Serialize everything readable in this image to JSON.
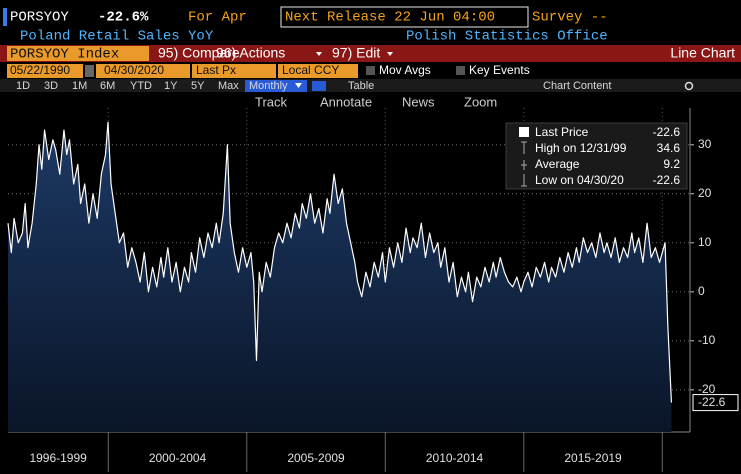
{
  "header": {
    "ticker": "PORSYOY",
    "change": "-22.6%",
    "period": "For Apr",
    "next_release": "Next Release 22 Jun 04:00",
    "survey": "Survey --",
    "description": "Poland Retail Sales YoY",
    "source": "Polish Statistics Office"
  },
  "toolbar": {
    "security": "PORSYOY Index",
    "menus": [
      "95) Compare",
      "96) Actions",
      "97) Edit"
    ],
    "chart_type": "Line Chart",
    "start_date": "05/22/1990",
    "end_date": "04/30/2020",
    "field": "Last Px",
    "currency": "Local CCY",
    "toggles": [
      "Mov Avgs",
      "Key Events"
    ],
    "ranges": [
      "1D",
      "3D",
      "1M",
      "6M",
      "YTD",
      "1Y",
      "5Y",
      "Max"
    ],
    "frequency": "Monthly",
    "table": "Table",
    "chart_content": "Chart Content",
    "tools": [
      "Track",
      "Annotate",
      "News",
      "Zoom"
    ]
  },
  "chart_data": {
    "type": "area",
    "x": [
      1996.38,
      1996.5,
      1996.6,
      1996.75,
      1996.9,
      1997.0,
      1997.1,
      1997.25,
      1997.4,
      1997.5,
      1997.6,
      1997.7,
      1997.85,
      1998.0,
      1998.1,
      1998.25,
      1998.4,
      1998.5,
      1998.6,
      1998.75,
      1998.9,
      1999.0,
      1999.15,
      1999.3,
      1999.45,
      1999.6,
      1999.75,
      1999.9,
      1999.99,
      2000.1,
      2000.25,
      2000.4,
      2000.55,
      2000.7,
      2000.85,
      2001.0,
      2001.15,
      2001.3,
      2001.45,
      2001.6,
      2001.75,
      2001.9,
      2002.0,
      2002.15,
      2002.3,
      2002.45,
      2002.6,
      2002.75,
      2002.9,
      2003.0,
      2003.15,
      2003.3,
      2003.45,
      2003.6,
      2003.75,
      2003.9,
      2004.0,
      2004.15,
      2004.3,
      2004.4,
      2004.55,
      2004.7,
      2004.85,
      2005.0,
      2005.15,
      2005.25,
      2005.35,
      2005.45,
      2005.55,
      2005.7,
      2005.85,
      2006.0,
      2006.15,
      2006.3,
      2006.45,
      2006.6,
      2006.75,
      2006.9,
      2007.0,
      2007.15,
      2007.3,
      2007.45,
      2007.6,
      2007.75,
      2007.9,
      2008.0,
      2008.15,
      2008.3,
      2008.45,
      2008.6,
      2008.75,
      2008.9,
      2009.0,
      2009.15,
      2009.3,
      2009.45,
      2009.6,
      2009.75,
      2009.9,
      2010.0,
      2010.15,
      2010.3,
      2010.45,
      2010.6,
      2010.75,
      2010.9,
      2011.0,
      2011.15,
      2011.3,
      2011.45,
      2011.6,
      2011.75,
      2011.9,
      2012.0,
      2012.15,
      2012.3,
      2012.45,
      2012.6,
      2012.75,
      2012.9,
      2013.0,
      2013.15,
      2013.3,
      2013.45,
      2013.6,
      2013.75,
      2013.9,
      2014.0,
      2014.15,
      2014.3,
      2014.45,
      2014.6,
      2014.75,
      2014.9,
      2015.0,
      2015.15,
      2015.3,
      2015.45,
      2015.6,
      2015.75,
      2015.9,
      2016.0,
      2016.15,
      2016.3,
      2016.45,
      2016.6,
      2016.75,
      2016.9,
      2017.0,
      2017.15,
      2017.3,
      2017.45,
      2017.6,
      2017.75,
      2017.9,
      2018.0,
      2018.15,
      2018.3,
      2018.45,
      2018.6,
      2018.75,
      2018.9,
      2019.0,
      2019.15,
      2019.3,
      2019.45,
      2019.6,
      2019.75,
      2019.9,
      2020.0,
      2020.1,
      2020.2,
      2020.33
    ],
    "series": [
      {
        "name": "Last Price",
        "color": "#ffffff",
        "fill": "#13284a",
        "values": [
          14,
          8,
          15,
          10,
          12,
          18,
          9,
          14,
          22,
          30,
          25,
          33,
          27,
          31,
          29,
          24,
          33,
          28,
          31,
          22,
          26,
          18,
          22,
          14,
          20,
          15,
          24,
          28,
          34.6,
          22,
          16,
          10,
          12,
          5,
          9,
          6,
          2,
          8,
          0,
          5,
          1,
          7,
          3,
          9,
          2,
          6,
          0,
          5,
          2,
          8,
          4,
          11,
          7,
          12,
          9,
          14,
          10,
          16,
          30,
          14,
          8,
          4,
          9,
          5,
          8,
          2,
          -14,
          4,
          0,
          6,
          3,
          9,
          12,
          10,
          14,
          11,
          16,
          13,
          18,
          15,
          20,
          14,
          17,
          12,
          19,
          16,
          24,
          18,
          21,
          14,
          10,
          6,
          2,
          -1,
          4,
          1,
          6,
          3,
          8,
          2,
          9,
          5,
          10,
          6,
          13,
          8,
          11,
          9,
          14,
          7,
          12,
          8,
          10,
          5,
          9,
          2,
          6,
          -1,
          3,
          0,
          4,
          -2,
          3,
          1,
          5,
          2,
          6,
          3,
          7,
          4,
          2,
          1,
          3,
          0,
          2,
          4,
          1,
          5,
          3,
          6,
          2,
          5,
          3,
          7,
          4,
          8,
          5,
          9,
          6,
          11,
          8,
          10,
          7,
          12,
          8,
          10,
          7,
          11,
          6,
          9,
          7,
          12,
          8,
          11,
          6,
          14,
          7,
          9,
          6,
          8,
          10,
          -7,
          -22.6
        ]
      }
    ],
    "stats": [
      {
        "label": "High on 12/31/99",
        "value": 34.6
      },
      {
        "label": "Average",
        "value": 9.2
      },
      {
        "label": "Low on 04/30/20",
        "value": -22.6
      }
    ],
    "xlim": [
      1996.38,
      2021.0
    ],
    "xticks": [
      2000,
      2005,
      2010,
      2015,
      2020
    ],
    "x_period_labels": [
      "1996-1999",
      "2000-2004",
      "2005-2009",
      "2010-2014",
      "2015-2019"
    ],
    "ylim": [
      -28.6,
      37.5
    ],
    "yticks": [
      -20,
      -10,
      0,
      10,
      20,
      30
    ],
    "grid": true
  }
}
